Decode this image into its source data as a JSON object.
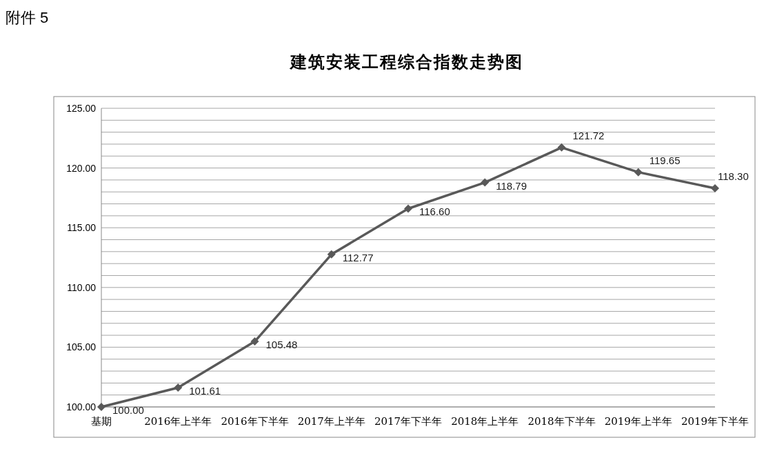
{
  "chart_data": {
    "type": "line",
    "title": "建筑安装工程综合指数走势图",
    "annotations": [
      "附件 5"
    ],
    "categories": [
      "基期",
      "2016年上半年",
      "2016年下半年",
      "2017年上半年",
      "2017年下半年",
      "2018年上半年",
      "2018年下半年",
      "2019年上半年",
      "2019年下半年"
    ],
    "series": [
      {
        "color": "#595959",
        "values": [
          100.0,
          101.61,
          105.48,
          112.77,
          116.6,
          118.79,
          121.72,
          119.65,
          118.3
        ],
        "value_labels": [
          "100.00",
          "101.61",
          "105.48",
          "112.77",
          "116.60",
          "118.79",
          "121.72",
          "119.65",
          "118.30"
        ]
      }
    ],
    "ylim": [
      100,
      125
    ],
    "yticks": [
      {
        "value": 100,
        "label": "100.00"
      },
      {
        "value": 101,
        "label": null
      },
      {
        "value": 102,
        "label": null
      },
      {
        "value": 103,
        "label": null
      },
      {
        "value": 104,
        "label": null
      },
      {
        "value": 105,
        "label": "105.00"
      },
      {
        "value": 106,
        "label": null
      },
      {
        "value": 107,
        "label": null
      },
      {
        "value": 108,
        "label": null
      },
      {
        "value": 109,
        "label": null
      },
      {
        "value": 110,
        "label": "110.00"
      },
      {
        "value": 111,
        "label": null
      },
      {
        "value": 112,
        "label": null
      },
      {
        "value": 113,
        "label": null
      },
      {
        "value": 114,
        "label": null
      },
      {
        "value": 115,
        "label": "115.00"
      },
      {
        "value": 116,
        "label": null
      },
      {
        "value": 117,
        "label": null
      },
      {
        "value": 118,
        "label": null
      },
      {
        "value": 119,
        "label": null
      },
      {
        "value": 120,
        "label": "120.00"
      },
      {
        "value": 121,
        "label": null
      },
      {
        "value": 122,
        "label": null
      },
      {
        "value": 123,
        "label": null
      },
      {
        "value": 124,
        "label": null
      },
      {
        "value": 125,
        "label": "125.00"
      }
    ],
    "grid": "y",
    "marker": "diamond",
    "line_style": "solid"
  }
}
